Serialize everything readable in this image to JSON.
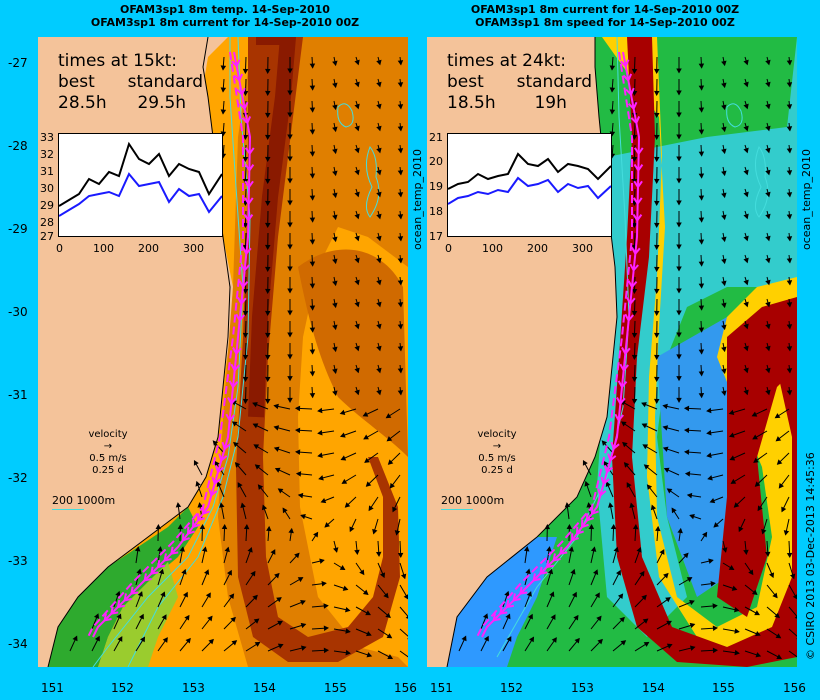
{
  "titles": {
    "left_line1": "OFAM3sp1 8m temp. 14-Sep-2010",
    "left_line2": "OFAM3sp1 8m current for 14-Sep-2010 00Z",
    "right_line1": "OFAM3sp1 8m current for 14-Sep-2010 00Z",
    "right_line2": "OFAM3sp1 8m speed for 14-Sep-2010 00Z"
  },
  "axis": {
    "y_ticks": [
      "-27",
      "-28",
      "-29",
      "-30",
      "-31",
      "-32",
      "-33",
      "-34"
    ],
    "x_ticks": [
      "151",
      "152",
      "153",
      "154",
      "155",
      "156"
    ]
  },
  "side_labels": {
    "left_panel_caption": "ocean_temp_2010",
    "right_panel_caption": "ocean_temp_2010",
    "credit": "© CSIRO 2013   03-Dec-2013 14:45:36"
  },
  "left_panel": {
    "times_header": "times at 15kt:",
    "col1": "best",
    "col2": "standard",
    "val1": "28.5h",
    "val2": "29.5h",
    "inset_y_ticks": [
      "33",
      "32",
      "31",
      "30",
      "29",
      "28",
      "27"
    ],
    "inset_x_ticks": [
      "0",
      "100",
      "200",
      "300"
    ]
  },
  "right_panel": {
    "times_header": "times at 24kt:",
    "col1": "best",
    "col2": "standard",
    "val1": "18.5h",
    "val2": "19h",
    "inset_y_ticks": [
      "21",
      "20",
      "19",
      "18",
      "17"
    ],
    "inset_x_ticks": [
      "0",
      "100",
      "200",
      "300"
    ]
  },
  "legend": {
    "velocity": "velocity",
    "speed": "0.5 m/s",
    "duration": "0.25 d",
    "contours": "200  1000m"
  },
  "colors": {
    "background": "#00ccff",
    "land": "#f4c39a",
    "route": "#ff22ff",
    "best_line": "#000000",
    "standard_line": "#1a1aff"
  }
}
